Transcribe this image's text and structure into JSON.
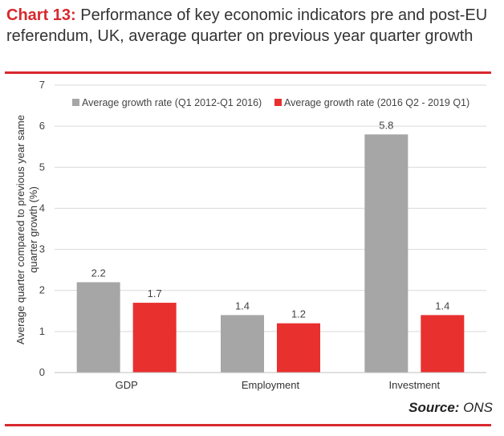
{
  "title": {
    "prefix": "Chart 13:",
    "text": " Performance of key economic indicators pre and post-EU referendum, UK, average quarter on previous year quarter growth"
  },
  "source": {
    "label": "Source:",
    "value": " ONS"
  },
  "colors": {
    "series1": "#a6a6a6",
    "series2": "#e8302f",
    "accent": "#d8282e"
  },
  "chart_data": {
    "type": "bar",
    "categories": [
      "GDP",
      "Employment",
      "Investment"
    ],
    "series": [
      {
        "name": "Average growth rate (Q1 2012-Q1 2016)",
        "values": [
          2.2,
          1.4,
          5.8
        ],
        "labels": [
          "2.2",
          "1.4",
          "5.8"
        ]
      },
      {
        "name": "Average growth rate (2016 Q2 - 2019 Q1)",
        "values": [
          1.7,
          1.2,
          1.4
        ],
        "labels": [
          "1.7",
          "1.2",
          "1.4"
        ]
      }
    ],
    "ylabel": "Average quarter compared to previous year same quarter growth (%)",
    "ylim": [
      0,
      7
    ],
    "yticks": [
      "0",
      "1",
      "2",
      "3",
      "4",
      "5",
      "6",
      "7"
    ],
    "grid": true,
    "legend": "top-right"
  }
}
